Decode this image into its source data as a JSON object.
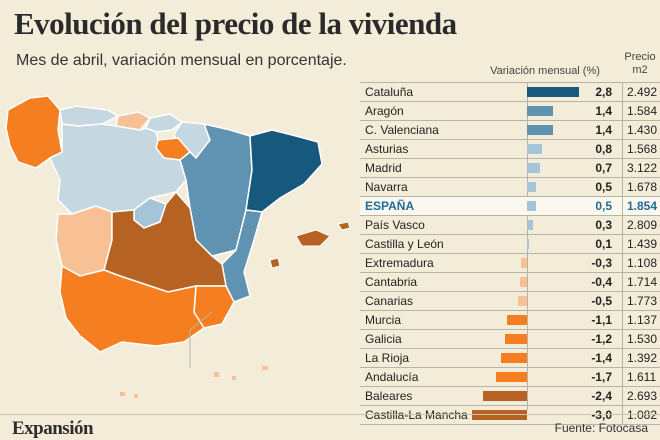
{
  "title": "Evolución del precio de la vivienda",
  "subtitle": "Mes de abril, variación mensual en porcentaje.",
  "column_headers": {
    "variation": "Variación mensual (%)",
    "price": "Precio m2"
  },
  "source": "Fuente: Fotocasa",
  "brand": "Expansión",
  "colors": {
    "background": "#f3ecd8",
    "dark_blue": "#17587d",
    "mid_blue": "#5f93b1",
    "light_blue": "#a5c4d7",
    "pale_blue": "#c5d8e2",
    "orange": "#f57f20",
    "brown": "#b56223",
    "peach": "#f8c095",
    "spain_text": "#1e6b96"
  },
  "chart_data": {
    "type": "bar",
    "orientation": "horizontal",
    "series": [
      {
        "values": [
          2.8,
          1.4,
          1.4,
          0.8,
          0.7,
          0.5,
          0.5,
          0.3,
          0.1,
          -0.3,
          -0.4,
          -0.5,
          -1.1,
          -1.2,
          -1.4,
          -1.7,
          -2.4,
          -3.0
        ]
      }
    ],
    "categories": [
      "Cataluña",
      "Aragón",
      "C. Valenciana",
      "Asturias",
      "Madrid",
      "Navarra",
      "ESPAÑA",
      "País Vasco",
      "Castilla y León",
      "Extremadura",
      "Cantabria",
      "Canarias",
      "Murcia",
      "Galicia",
      "La Rioja",
      "Andalucía",
      "Baleares",
      "Castilla-La Mancha"
    ],
    "value_labels": [
      "2,8",
      "1,4",
      "1,4",
      "0,8",
      "0,7",
      "0,5",
      "0,5",
      "0,3",
      "0,1",
      "-0,3",
      "-0,4",
      "-0,5",
      "-1,1",
      "-1,2",
      "-1,4",
      "-1,7",
      "-2,4",
      "-3,0"
    ],
    "prices": [
      "2.492",
      "1.584",
      "1.430",
      "1.568",
      "3.122",
      "1.678",
      "1.854",
      "2.809",
      "1.439",
      "1.108",
      "1.714",
      "1.773",
      "1.137",
      "1.530",
      "1.392",
      "1.611",
      "2.693",
      "1.082"
    ],
    "highlight": "ESPAÑA",
    "xlim": [
      -3.0,
      2.8
    ],
    "grid": false
  }
}
